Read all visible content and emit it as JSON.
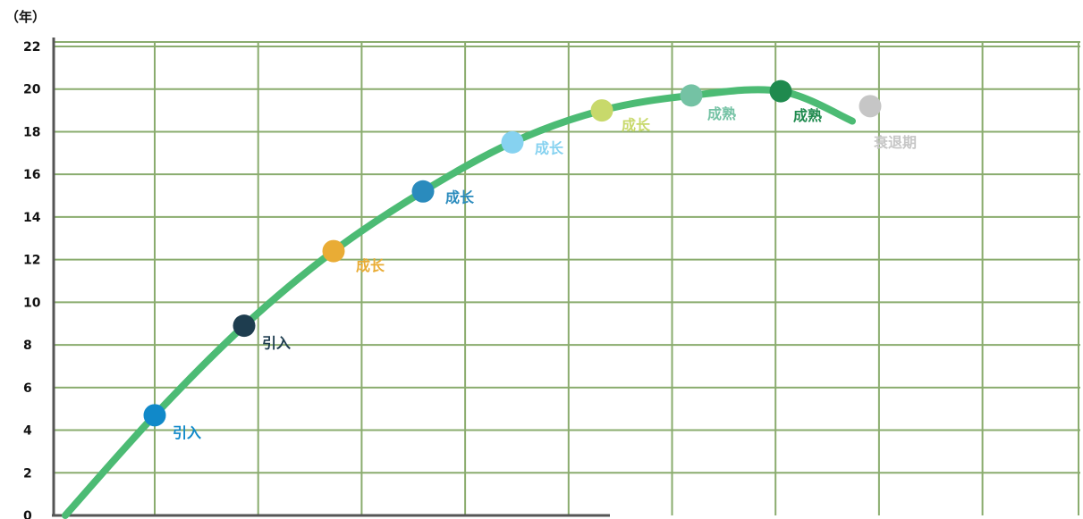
{
  "chart_data": {
    "type": "line",
    "ylabel": "（年）",
    "ylim": [
      0,
      22
    ],
    "yticks": [
      0,
      2,
      4,
      6,
      8,
      10,
      12,
      14,
      16,
      18,
      20,
      22
    ],
    "x_gridlines": 10,
    "grid": true,
    "colors": {
      "grid": "#8aac6e",
      "curve": "#4cbb74",
      "axis": "#555555"
    },
    "curve": {
      "x": [
        0,
        1,
        2,
        3,
        4,
        5,
        6,
        7,
        8,
        8.8
      ],
      "y": [
        0,
        4.7,
        8.9,
        12.4,
        15.2,
        17.5,
        19.0,
        19.7,
        19.9,
        18.5
      ]
    },
    "points": [
      {
        "x": 1,
        "y": 4.7,
        "label": "引入",
        "color": "#1189c9"
      },
      {
        "x": 2,
        "y": 8.9,
        "label": "引入",
        "color": "#1e3d4f"
      },
      {
        "x": 3,
        "y": 12.4,
        "label": "成长",
        "color": "#e9ac35"
      },
      {
        "x": 4,
        "y": 15.2,
        "label": "成长",
        "color": "#2a8bbd"
      },
      {
        "x": 5,
        "y": 17.5,
        "label": "成长",
        "color": "#86d2f0"
      },
      {
        "x": 6,
        "y": 19.0,
        "label": "成长",
        "color": "#c8d96b"
      },
      {
        "x": 7,
        "y": 19.7,
        "label": "成熟",
        "color": "#74c2a4"
      },
      {
        "x": 8,
        "y": 19.9,
        "label": "成熟",
        "color": "#1f8a4e"
      },
      {
        "x": 9,
        "y": 19.2,
        "label": "衰退期",
        "color": "#c6c6c6"
      }
    ]
  }
}
